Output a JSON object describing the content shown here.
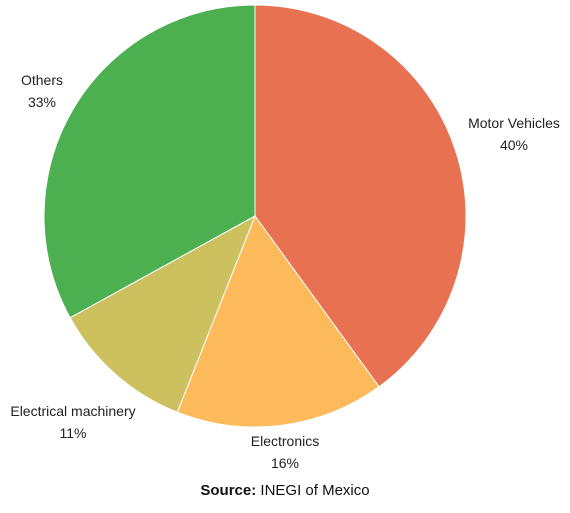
{
  "chart_data": {
    "type": "pie",
    "slices": [
      {
        "label": "Motor Vehicles",
        "percent_label": "40%",
        "value": 40,
        "color": "#E87152"
      },
      {
        "label": "Electronics",
        "percent_label": "16%",
        "value": 16,
        "color": "#FDBA5B"
      },
      {
        "label": "Electrical machinery",
        "percent_label": "11%",
        "value": 11,
        "color": "#CCC05F"
      },
      {
        "label": "Others",
        "percent_label": "33%",
        "value": 33,
        "color": "#4CAF50"
      }
    ],
    "start_angle": "12 o'clock",
    "direction": "clockwise"
  },
  "source": {
    "prefix": "Source:",
    "text": " INEGI of Mexico"
  }
}
